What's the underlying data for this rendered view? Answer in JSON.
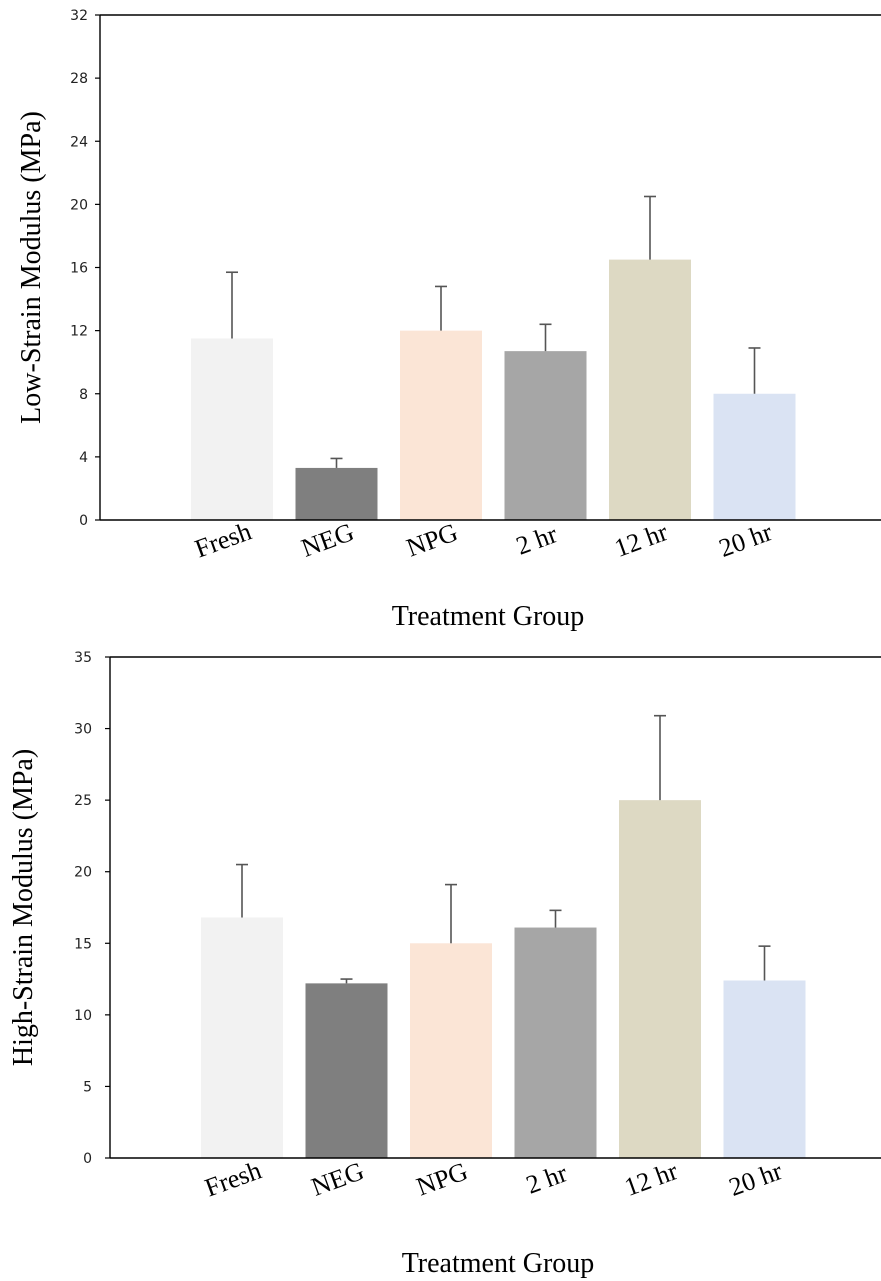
{
  "chart_data": [
    {
      "type": "bar",
      "categories": [
        "Fresh",
        "NEG",
        "NPG",
        "2 hr",
        "12 hr",
        "20 hr"
      ],
      "values": [
        11.5,
        3.3,
        12.0,
        10.7,
        16.5,
        8.0
      ],
      "error_upper": [
        15.7,
        3.9,
        14.8,
        12.4,
        20.5,
        10.9
      ],
      "colors": [
        "#f2f2f2",
        "#7f7f7f",
        "#fbe5d6",
        "#a6a6a6",
        "#ddd9c3",
        "#dae3f3"
      ],
      "xlabel": "Treatment Group",
      "ylabel": "Low-Strain Modulus (MPa)",
      "ylim": [
        0,
        32
      ],
      "yticks": [
        0,
        4,
        8,
        12,
        16,
        20,
        24,
        28,
        32
      ],
      "ytick_labels": [
        "0",
        "4",
        "8",
        "12",
        "16",
        "20",
        "24",
        "28",
        "32"
      ],
      "grid": false
    },
    {
      "type": "bar",
      "categories": [
        "Fresh",
        "NEG",
        "NPG",
        "2 hr",
        "12 hr",
        "20 hr"
      ],
      "values": [
        16.8,
        12.2,
        15.0,
        16.1,
        25.0,
        12.4
      ],
      "error_upper": [
        20.5,
        12.5,
        19.1,
        17.3,
        30.9,
        14.8
      ],
      "colors": [
        "#f2f2f2",
        "#7f7f7f",
        "#fbe5d6",
        "#a6a6a6",
        "#ddd9c3",
        "#dae3f3"
      ],
      "xlabel": "Treatment Group",
      "ylabel": "High-Strain Modulus (MPa)",
      "ylim": [
        0,
        35
      ],
      "yticks": [
        0,
        5,
        10,
        15,
        20,
        25,
        30,
        35
      ],
      "ytick_labels": [
        "0",
        "5",
        "10",
        "15",
        "20",
        "25",
        "30",
        "35"
      ],
      "grid": false
    }
  ]
}
